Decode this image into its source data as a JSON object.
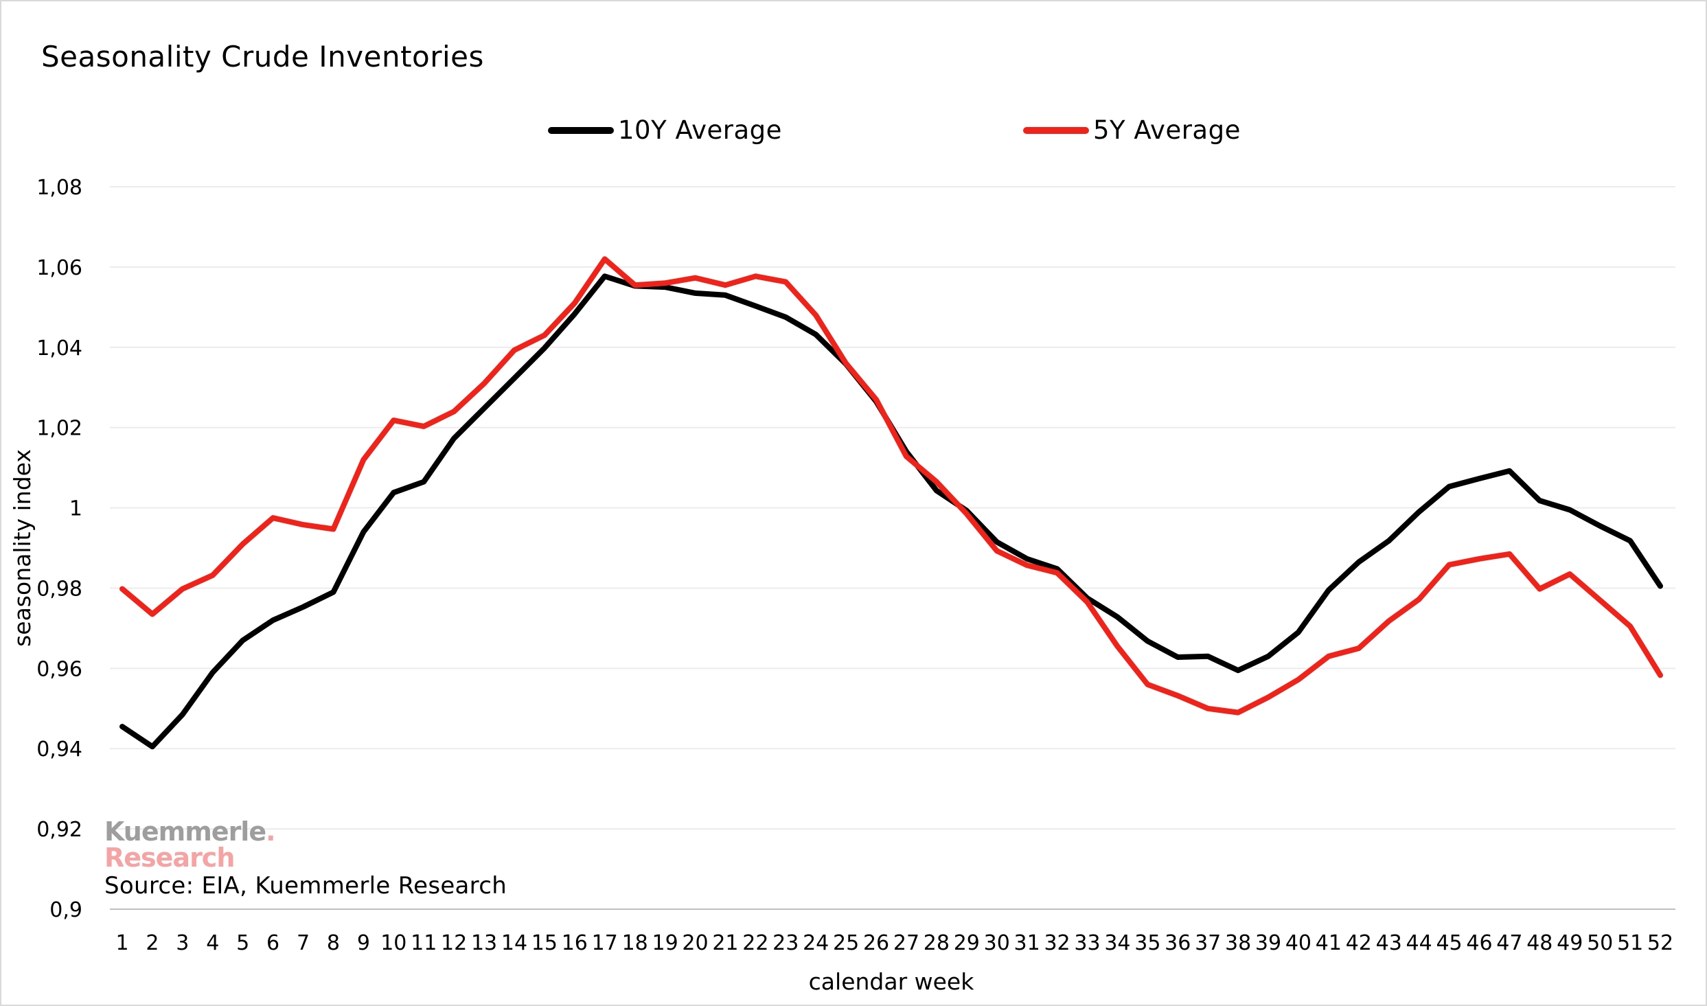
{
  "chart_data": {
    "type": "line",
    "title": "Seasonality Crude Inventories",
    "xlabel": "calendar week",
    "ylabel": "seasonality index",
    "x": [
      1,
      2,
      3,
      4,
      5,
      6,
      7,
      8,
      9,
      10,
      11,
      12,
      13,
      14,
      15,
      16,
      17,
      18,
      19,
      20,
      21,
      22,
      23,
      24,
      25,
      26,
      27,
      28,
      29,
      30,
      31,
      32,
      33,
      34,
      35,
      36,
      37,
      38,
      39,
      40,
      41,
      42,
      43,
      44,
      45,
      46,
      47,
      48,
      49,
      50,
      51,
      52
    ],
    "yticks": [
      "0,9",
      "0,92",
      "0,94",
      "0,96",
      "0,98",
      "1",
      "1,02",
      "1,04",
      "1,06",
      "1,08"
    ],
    "ylim": [
      0.9,
      1.08
    ],
    "grid": true,
    "legend_position": "top",
    "series": [
      {
        "name": "10Y Average",
        "color": "#000000",
        "values": [
          0.9455,
          0.9405,
          0.9485,
          0.959,
          0.967,
          0.972,
          0.9753,
          0.979,
          0.994,
          1.0038,
          1.0065,
          1.0173,
          1.0248,
          1.0323,
          1.0398,
          1.0483,
          1.0577,
          1.0553,
          1.055,
          1.0535,
          1.053,
          1.0503,
          1.0475,
          1.0432,
          1.0358,
          1.0265,
          1.014,
          1.0043,
          0.9993,
          0.9915,
          0.9873,
          0.9848,
          0.9775,
          0.9728,
          0.9668,
          0.9628,
          0.963,
          0.9595,
          0.963,
          0.969,
          0.9795,
          0.9865,
          0.9918,
          0.999,
          1.0053,
          1.0073,
          1.0092,
          1.0018,
          0.9995,
          0.9955,
          0.9918,
          0.9805
        ]
      },
      {
        "name": "5Y Average",
        "color": "#f0231b",
        "values": [
          0.9798,
          0.9735,
          0.9798,
          0.9832,
          0.991,
          0.9975,
          0.9958,
          0.9947,
          1.012,
          1.0218,
          1.0203,
          1.024,
          1.031,
          1.0393,
          1.043,
          1.051,
          1.062,
          1.0555,
          1.056,
          1.0573,
          1.0555,
          1.0577,
          1.0563,
          1.048,
          1.036,
          1.027,
          1.0128,
          1.0065,
          0.9985,
          0.9893,
          0.9857,
          0.9838,
          0.9765,
          0.9655,
          0.956,
          0.9532,
          0.95,
          0.949,
          0.9528,
          0.9572,
          0.963,
          0.965,
          0.9718,
          0.9772,
          0.9858,
          0.9873,
          0.9885,
          0.9798,
          0.9835,
          0.977,
          0.9705,
          0.9583
        ]
      }
    ]
  },
  "watermark": {
    "line1": "Kuemmerle",
    "dot": ".",
    "line2": "Research"
  },
  "source": "Source: EIA, Kuemmerle Research"
}
